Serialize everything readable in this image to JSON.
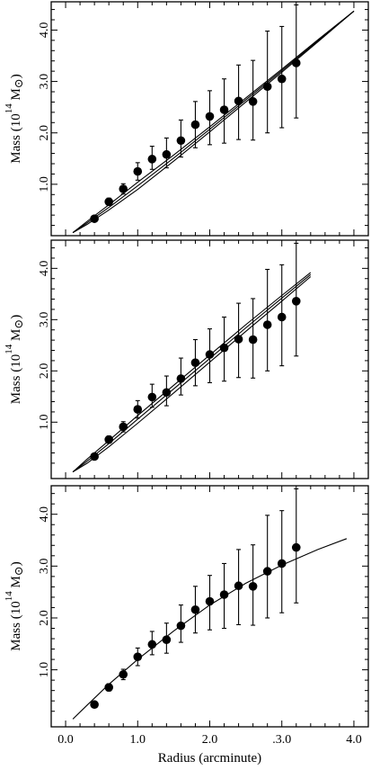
{
  "chart_data": [
    {
      "type": "scatter",
      "panel": "top",
      "ylabel": {
        "prefix": "Mass  (10",
        "exponent": "14",
        "suffix": " M",
        "symbol": "⊙",
        "close": ")"
      },
      "xlim": [
        -0.2,
        4.2
      ],
      "ylim": [
        0,
        4.55
      ],
      "yticks": [
        "1.0",
        "2.0",
        "3.0",
        "4.0"
      ],
      "ytick_values": [
        1,
        2,
        3,
        4
      ],
      "xtick_values": [
        0,
        1,
        2,
        3,
        4
      ],
      "points": {
        "x": [
          0.4,
          0.6,
          0.8,
          1.0,
          1.2,
          1.4,
          1.6,
          1.8,
          2.0,
          2.2,
          2.4,
          2.6,
          2.8,
          3.0,
          3.2
        ],
        "y": [
          0.33,
          0.66,
          0.91,
          1.25,
          1.49,
          1.58,
          1.85,
          2.16,
          2.32,
          2.45,
          2.62,
          2.61,
          2.9,
          3.05,
          3.36
        ],
        "err_low": [
          0.05,
          0.07,
          0.1,
          0.17,
          0.2,
          0.26,
          0.32,
          0.45,
          0.55,
          0.65,
          0.75,
          0.75,
          0.9,
          0.95,
          1.07
        ],
        "err_high": [
          0.05,
          0.07,
          0.1,
          0.17,
          0.25,
          0.32,
          0.4,
          0.45,
          0.5,
          0.6,
          0.7,
          0.8,
          1.08,
          1.02,
          1.13
        ]
      },
      "model_curves": [
        {
          "x": [
            0.1,
            0.3,
            0.6,
            1.0,
            1.5,
            2.0,
            2.5,
            3.0,
            3.5,
            4.0
          ],
          "y": [
            0.06,
            0.22,
            0.5,
            0.9,
            1.45,
            2.02,
            2.6,
            3.18,
            3.77,
            4.37
          ]
        },
        {
          "x": [
            0.1,
            0.3,
            0.6,
            1.0,
            1.5,
            2.0,
            2.5,
            3.0,
            3.5,
            4.0
          ],
          "y": [
            0.06,
            0.25,
            0.55,
            0.97,
            1.51,
            2.07,
            2.64,
            3.21,
            3.79,
            4.37
          ]
        },
        {
          "x": [
            0.1,
            0.3,
            0.6,
            1.0,
            1.5,
            2.0,
            2.5,
            3.0,
            3.5,
            4.0
          ],
          "y": [
            0.06,
            0.28,
            0.6,
            1.04,
            1.57,
            2.12,
            2.68,
            3.24,
            3.81,
            4.37
          ]
        }
      ]
    },
    {
      "type": "scatter",
      "panel": "middle",
      "ylabel": {
        "prefix": "Mass  (10",
        "exponent": "14",
        "suffix": " M",
        "symbol": "⊙",
        "close": ")"
      },
      "xlim": [
        -0.2,
        4.2
      ],
      "ylim": [
        -0.1,
        4.55
      ],
      "yticks": [
        "1.0",
        "2.0",
        "3.0",
        "4.0"
      ],
      "ytick_values": [
        1,
        2,
        3,
        4
      ],
      "xtick_values": [
        0,
        1,
        2,
        3,
        4
      ],
      "points": {
        "x": [
          0.4,
          0.6,
          0.8,
          1.0,
          1.2,
          1.4,
          1.6,
          1.8,
          2.0,
          2.2,
          2.4,
          2.6,
          2.8,
          3.0,
          3.2
        ],
        "y": [
          0.33,
          0.66,
          0.91,
          1.25,
          1.49,
          1.58,
          1.85,
          2.16,
          2.32,
          2.45,
          2.62,
          2.61,
          2.9,
          3.05,
          3.36
        ],
        "err_low": [
          0.05,
          0.07,
          0.1,
          0.17,
          0.2,
          0.26,
          0.32,
          0.45,
          0.55,
          0.65,
          0.75,
          0.75,
          0.9,
          0.95,
          1.07
        ],
        "err_high": [
          0.05,
          0.07,
          0.1,
          0.17,
          0.25,
          0.32,
          0.4,
          0.45,
          0.5,
          0.6,
          0.7,
          0.8,
          1.08,
          1.02,
          1.13
        ]
      },
      "model_curves": [
        {
          "x": [
            0.1,
            0.3,
            0.6,
            1.0,
            1.5,
            2.0,
            2.5,
            3.0,
            3.4
          ],
          "y": [
            0.03,
            0.2,
            0.52,
            0.98,
            1.57,
            2.17,
            2.77,
            3.36,
            3.84
          ]
        },
        {
          "x": [
            0.1,
            0.3,
            0.6,
            1.0,
            1.5,
            2.0,
            2.5,
            3.0,
            3.4
          ],
          "y": [
            0.03,
            0.24,
            0.58,
            1.06,
            1.65,
            2.24,
            2.84,
            3.42,
            3.88
          ]
        },
        {
          "x": [
            0.1,
            0.3,
            0.6,
            1.0,
            1.5,
            2.0,
            2.5,
            3.0,
            3.4
          ],
          "y": [
            0.03,
            0.28,
            0.64,
            1.13,
            1.72,
            2.31,
            2.9,
            3.47,
            3.92
          ]
        }
      ]
    },
    {
      "type": "scatter",
      "panel": "bottom",
      "xlabel": "Radius  (arcminute)",
      "ylabel": {
        "prefix": "Mass  (10",
        "exponent": "14",
        "suffix": " M",
        "symbol": "⊙",
        "close": ")"
      },
      "xlim": [
        -0.2,
        4.2
      ],
      "ylim": [
        -0.1,
        4.55
      ],
      "xticks": [
        "0.0",
        "1.0",
        "2.0",
        ".3.0",
        "4.0"
      ],
      "xtick_values": [
        0,
        1,
        2,
        3,
        4
      ],
      "yticks": [
        "1.0",
        "2.0",
        "3.0",
        "4.0"
      ],
      "ytick_values": [
        1,
        2,
        3,
        4
      ],
      "points": {
        "x": [
          0.4,
          0.6,
          0.8,
          1.0,
          1.2,
          1.4,
          1.6,
          1.8,
          2.0,
          2.2,
          2.4,
          2.6,
          2.8,
          3.0,
          3.2
        ],
        "y": [
          0.33,
          0.66,
          0.91,
          1.25,
          1.49,
          1.58,
          1.85,
          2.16,
          2.32,
          2.45,
          2.62,
          2.61,
          2.9,
          3.05,
          3.36
        ],
        "err_low": [
          0.05,
          0.07,
          0.1,
          0.17,
          0.2,
          0.26,
          0.32,
          0.45,
          0.55,
          0.65,
          0.75,
          0.75,
          0.9,
          0.95,
          1.07
        ],
        "err_high": [
          0.05,
          0.07,
          0.1,
          0.17,
          0.25,
          0.32,
          0.4,
          0.45,
          0.5,
          0.6,
          0.7,
          0.8,
          1.08,
          1.02,
          1.13
        ]
      },
      "model_curves": [
        {
          "x": [
            0.1,
            0.3,
            0.6,
            1.0,
            1.5,
            2.0,
            2.5,
            3.0,
            3.5,
            3.9
          ],
          "y": [
            0.05,
            0.32,
            0.72,
            1.2,
            1.75,
            2.25,
            2.67,
            3.02,
            3.32,
            3.53
          ]
        }
      ]
    }
  ]
}
